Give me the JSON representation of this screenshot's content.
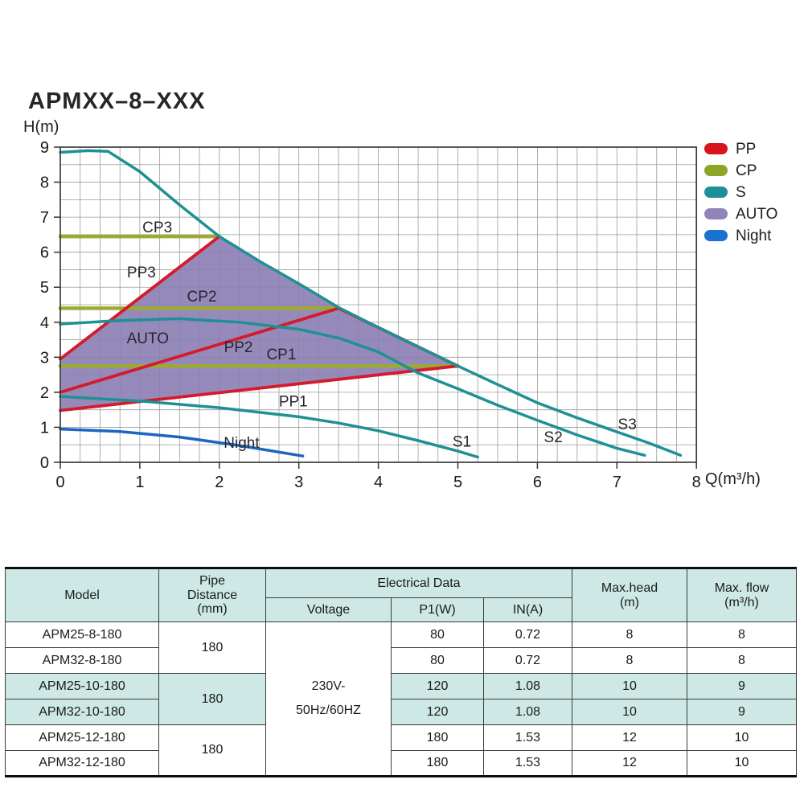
{
  "page": {
    "title": "APMXX–8–XXX"
  },
  "chart_data": {
    "type": "line",
    "title": "APMXX–8–XXX",
    "xlabel": "Q(m³/h)",
    "ylabel": "H(m)",
    "xlim": [
      0,
      8
    ],
    "ylim": [
      0,
      9
    ],
    "x_ticks": [
      0,
      1,
      2,
      3,
      4,
      5,
      6,
      7,
      8
    ],
    "y_ticks": [
      0,
      1,
      2,
      3,
      4,
      5,
      6,
      7,
      8,
      9
    ],
    "grid": {
      "on": true,
      "x_step": 0.25,
      "y_step": 0.5
    },
    "legend_position": "top-right-outside",
    "legend": [
      {
        "label": "PP",
        "color": "#d9121f"
      },
      {
        "label": "CP",
        "color": "#8da629"
      },
      {
        "label": "S",
        "color": "#1d9097"
      },
      {
        "label": "AUTO",
        "color": "#9184b8"
      },
      {
        "label": "Night",
        "color": "#1c72cf"
      }
    ],
    "region": {
      "name": "AUTO",
      "color": "#8b7db2",
      "opacity": 0.9,
      "outline": [
        [
          0,
          1.48
        ],
        [
          0,
          2.95
        ],
        [
          2,
          6.45
        ],
        [
          2.5,
          5.75
        ],
        [
          3,
          5.1
        ],
        [
          3.5,
          4.42
        ],
        [
          4,
          3.85
        ],
        [
          4.5,
          3.3
        ],
        [
          5,
          2.75
        ]
      ]
    },
    "series": [
      {
        "name": "CP3",
        "color": "#9cab2f",
        "width": 4.5,
        "points": [
          [
            0,
            6.45
          ],
          [
            2,
            6.45
          ]
        ]
      },
      {
        "name": "CP2",
        "color": "#9cab2f",
        "width": 4.5,
        "points": [
          [
            0,
            4.4
          ],
          [
            3.5,
            4.4
          ]
        ]
      },
      {
        "name": "CP1",
        "color": "#9cab2f",
        "width": 4.5,
        "points": [
          [
            0,
            2.75
          ],
          [
            5,
            2.75
          ]
        ]
      },
      {
        "name": "PP3",
        "color": "#d41b2c",
        "width": 3.8,
        "points": [
          [
            0,
            2.95
          ],
          [
            2,
            6.45
          ]
        ]
      },
      {
        "name": "PP2",
        "color": "#d41b2c",
        "width": 3.8,
        "points": [
          [
            0,
            2.0
          ],
          [
            3.5,
            4.4
          ],
          [
            5,
            2.75
          ]
        ]
      },
      {
        "name": "PP1",
        "color": "#d41b2c",
        "width": 3.8,
        "points": [
          [
            0,
            1.48
          ],
          [
            5,
            2.75
          ]
        ]
      },
      {
        "name": "S3",
        "color": "#1f9094",
        "width": 3.5,
        "points": [
          [
            0,
            8.85
          ],
          [
            0.35,
            8.9
          ],
          [
            0.6,
            8.88
          ],
          [
            1,
            8.3
          ],
          [
            1.5,
            7.35
          ],
          [
            2,
            6.45
          ],
          [
            2.5,
            5.75
          ],
          [
            3,
            5.1
          ],
          [
            3.5,
            4.42
          ],
          [
            4,
            3.85
          ],
          [
            4.5,
            3.3
          ],
          [
            5,
            2.75
          ],
          [
            5.5,
            2.22
          ],
          [
            6,
            1.7
          ],
          [
            6.5,
            1.27
          ],
          [
            7,
            0.87
          ],
          [
            7.4,
            0.55
          ],
          [
            7.8,
            0.2
          ]
        ]
      },
      {
        "name": "S2",
        "color": "#1f9094",
        "width": 3.5,
        "points": [
          [
            0,
            3.95
          ],
          [
            0.75,
            4.05
          ],
          [
            1.5,
            4.1
          ],
          [
            2.25,
            4.0
          ],
          [
            3,
            3.8
          ],
          [
            3.5,
            3.55
          ],
          [
            4,
            3.15
          ],
          [
            4.5,
            2.55
          ],
          [
            5,
            2.1
          ],
          [
            5.5,
            1.63
          ],
          [
            6,
            1.2
          ],
          [
            6.5,
            0.78
          ],
          [
            7,
            0.4
          ],
          [
            7.35,
            0.2
          ]
        ]
      },
      {
        "name": "S1",
        "color": "#1f9094",
        "width": 3.5,
        "points": [
          [
            0,
            1.88
          ],
          [
            1,
            1.75
          ],
          [
            2,
            1.56
          ],
          [
            3,
            1.3
          ],
          [
            3.5,
            1.12
          ],
          [
            4,
            0.9
          ],
          [
            4.5,
            0.62
          ],
          [
            5,
            0.32
          ],
          [
            5.25,
            0.15
          ]
        ]
      },
      {
        "name": "Night",
        "color": "#1a66c0",
        "width": 3.5,
        "points": [
          [
            0,
            0.95
          ],
          [
            0.75,
            0.88
          ],
          [
            1.5,
            0.72
          ],
          [
            2.25,
            0.48
          ],
          [
            3.05,
            0.18
          ]
        ]
      }
    ],
    "curve_labels": [
      {
        "text": "CP3",
        "x": 1.22,
        "y": 6.7
      },
      {
        "text": "PP3",
        "x": 1.02,
        "y": 5.42
      },
      {
        "text": "CP2",
        "x": 1.78,
        "y": 4.73
      },
      {
        "text": "AUTO",
        "x": 1.1,
        "y": 3.54
      },
      {
        "text": "PP2",
        "x": 2.24,
        "y": 3.28
      },
      {
        "text": "CP1",
        "x": 2.78,
        "y": 3.08
      },
      {
        "text": "PP1",
        "x": 2.93,
        "y": 1.73
      },
      {
        "text": "Night",
        "x": 2.28,
        "y": 0.55
      },
      {
        "text": "S1",
        "x": 5.05,
        "y": 0.58
      },
      {
        "text": "S2",
        "x": 6.2,
        "y": 0.71
      },
      {
        "text": "S3",
        "x": 7.13,
        "y": 1.08
      }
    ]
  },
  "table": {
    "header": {
      "model": "Model",
      "pipe_lines": [
        "Pipe",
        "Distance",
        "(mm)"
      ],
      "electrical": "Electrical Data",
      "voltage": "Voltage",
      "p1": "P1(W)",
      "current": "IN(A)",
      "head_lines": [
        "Max.head",
        "(m)"
      ],
      "flow_lines": [
        "Max. flow",
        "(m³/h)"
      ]
    },
    "voltage_value_lines": [
      "230V-",
      "50Hz/60HZ"
    ],
    "pipe_groups": [
      {
        "value": "180"
      },
      {
        "value": "180"
      },
      {
        "value": "180"
      }
    ],
    "rows": [
      {
        "model": "APM25-8-180",
        "p1": "80",
        "current": "0.72",
        "head": "8",
        "flow": "8",
        "shaded": false
      },
      {
        "model": "APM32-8-180",
        "p1": "80",
        "current": "0.72",
        "head": "8",
        "flow": "8",
        "shaded": false
      },
      {
        "model": "APM25-10-180",
        "p1": "120",
        "current": "1.08",
        "head": "10",
        "flow": "9",
        "shaded": true
      },
      {
        "model": "APM32-10-180",
        "p1": "120",
        "current": "1.08",
        "head": "10",
        "flow": "9",
        "shaded": true
      },
      {
        "model": "APM25-12-180",
        "p1": "180",
        "current": "1.53",
        "head": "12",
        "flow": "10",
        "shaded": false
      },
      {
        "model": "APM32-12-180",
        "p1": "180",
        "current": "1.53",
        "head": "12",
        "flow": "10",
        "shaded": false
      }
    ],
    "colors": {
      "header_bg": "#cde8e5",
      "shaded_row_bg": "#cde8e5"
    }
  }
}
